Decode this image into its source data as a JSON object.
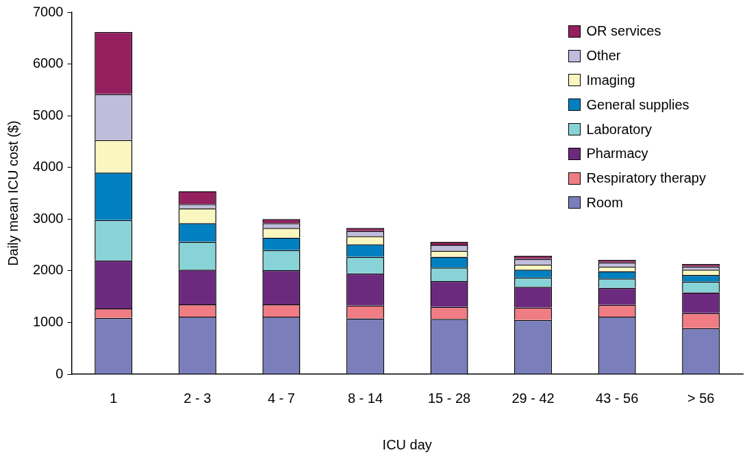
{
  "chart_data": {
    "type": "bar",
    "stacked": true,
    "xlabel": "ICU day",
    "ylabel": "Daily mean ICU cost ($)",
    "categories": [
      "1",
      "2 - 3",
      "4 - 7",
      "8 - 14",
      "15 - 28",
      "29 - 42",
      "43 - 56",
      "> 56"
    ],
    "series": [
      {
        "name": "Room",
        "color": "#7a7fbb",
        "values": [
          1090,
          1110,
          1110,
          1080,
          1070,
          1050,
          1110,
          890
        ]
      },
      {
        "name": "Respiratory therapy",
        "color": "#f07c84",
        "values": [
          180,
          240,
          240,
          250,
          230,
          240,
          230,
          290
        ]
      },
      {
        "name": "Pharmacy",
        "color": "#6c2a7e",
        "values": [
          930,
          670,
          660,
          620,
          500,
          400,
          330,
          400
        ]
      },
      {
        "name": "Laboratory",
        "color": "#88d3d8",
        "values": [
          780,
          540,
          390,
          320,
          260,
          180,
          180,
          210
        ]
      },
      {
        "name": "General supplies",
        "color": "#0080c0",
        "values": [
          920,
          360,
          240,
          240,
          210,
          150,
          140,
          130
        ]
      },
      {
        "name": "Imaging",
        "color": "#f9f6c0",
        "values": [
          630,
          290,
          190,
          160,
          120,
          100,
          90,
          100
        ]
      },
      {
        "name": "Other",
        "color": "#c0bcdc",
        "values": [
          890,
          80,
          90,
          100,
          110,
          110,
          80,
          60
        ]
      },
      {
        "name": "OR services",
        "color": "#952060",
        "values": [
          1200,
          250,
          80,
          60,
          60,
          60,
          50,
          50
        ]
      }
    ],
    "ylim": [
      0,
      7000
    ],
    "yticks": [
      0,
      1000,
      2000,
      3000,
      4000,
      5000,
      6000,
      7000
    ],
    "grid": false,
    "legend": "top right"
  }
}
